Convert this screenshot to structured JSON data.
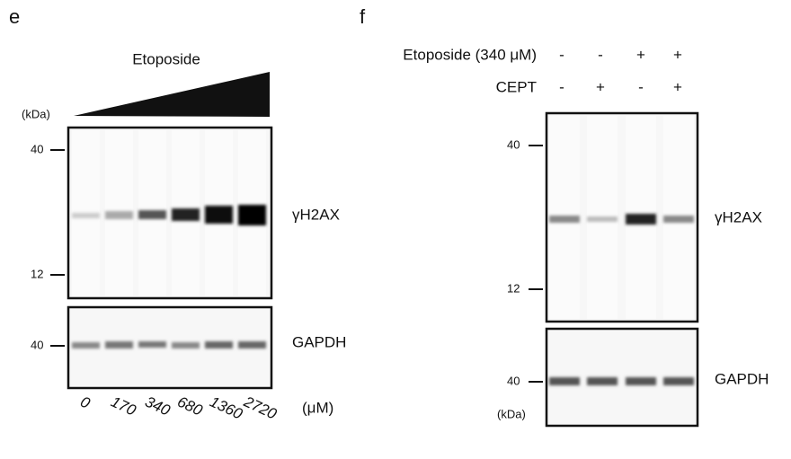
{
  "panel_e": {
    "label": "e",
    "treatment": "Etoposide",
    "kda_label": "(kDa)",
    "top_blot": {
      "ticks": [
        "40",
        "12"
      ],
      "protein": "γH2AX"
    },
    "bottom_blot": {
      "ticks": [
        "40"
      ],
      "protein": "GAPDH"
    },
    "lanes": [
      "0",
      "170",
      "340",
      "680",
      "1360",
      "2720"
    ],
    "unit": "(μM)"
  },
  "panel_f": {
    "label": "f",
    "conditions": [
      {
        "label": "Etoposide (340 μM)",
        "signs": [
          "-",
          "-",
          "+",
          "+"
        ]
      },
      {
        "label": "CEPT",
        "signs": [
          "-",
          "+",
          "-",
          "+"
        ]
      }
    ],
    "top_blot": {
      "ticks": [
        "40",
        "12"
      ],
      "protein": "γH2AX"
    },
    "bottom_blot": {
      "ticks": [
        "40"
      ],
      "protein": "GAPDH"
    },
    "kda_label": "(kDa)"
  }
}
